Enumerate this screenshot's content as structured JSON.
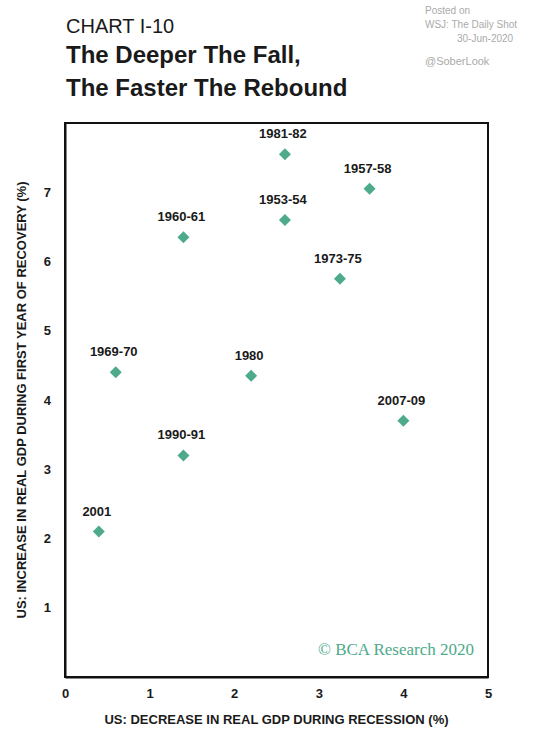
{
  "chart_data": {
    "type": "scatter",
    "subtitle": "CHART I-10",
    "title": [
      "The Deeper The Fall,",
      "The Faster The Rebound"
    ],
    "x_label": "US: DECREASE IN REAL GDP DURING RECESSION (%)",
    "y_label": "US: INCREASE IN REAL GDP DURING FIRST YEAR OF RECOVERY (%)",
    "labels": [
      "2001",
      "1969-70",
      "1960-61",
      "1990-91",
      "1980",
      "1981-82",
      "1953-54",
      "1957-58",
      "1973-75",
      "2007-09"
    ],
    "x": [
      0.4,
      0.6,
      1.4,
      1.4,
      2.2,
      2.6,
      2.6,
      3.6,
      3.25,
      4.0
    ],
    "values": [
      2.1,
      4.4,
      6.35,
      3.2,
      4.35,
      7.55,
      6.6,
      7.05,
      5.75,
      3.7
    ],
    "color": "#4daa8a",
    "marker": "diamond",
    "xlim": [
      0,
      5
    ],
    "xticks": [
      0,
      1,
      2,
      3,
      4,
      5
    ],
    "ylim": [
      0,
      8
    ],
    "yticks": [
      1,
      2,
      3,
      4,
      5,
      6,
      7
    ],
    "grid": false,
    "annotations": [
      "Posted on",
      "WSJ: The Daily Shot",
      "30-Jun-2020",
      "@SoberLook",
      "© BCA Research 2020"
    ]
  }
}
